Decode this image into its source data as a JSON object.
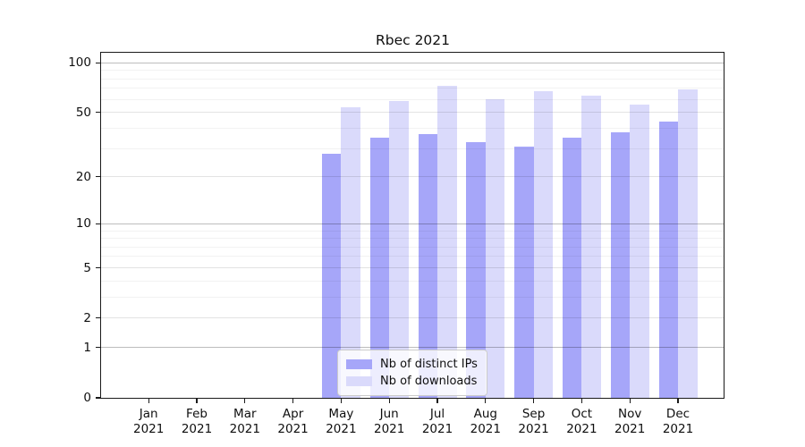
{
  "figure_title": "Rbec 2021",
  "chart_data": {
    "type": "bar",
    "title": "Rbec 2021",
    "categories": [
      "Jan 2021",
      "Feb 2021",
      "Mar 2021",
      "Apr 2021",
      "May 2021",
      "Jun 2021",
      "Jul 2021",
      "Aug 2021",
      "Sep 2021",
      "Oct 2021",
      "Nov 2021",
      "Dec 2021"
    ],
    "months": [
      "Jan",
      "Feb",
      "Mar",
      "Apr",
      "May",
      "Jun",
      "Jul",
      "Aug",
      "Sep",
      "Oct",
      "Nov",
      "Dec"
    ],
    "year": "2021",
    "series": [
      {
        "key": "distinct-ips",
        "name": "Nb of distinct IPs",
        "color": "#a6a6f9",
        "values": [
          0,
          0,
          0,
          0,
          28,
          35,
          37,
          33,
          31,
          35,
          38,
          44
        ]
      },
      {
        "key": "downloads",
        "name": "Nb of downloads",
        "color": "#dadafb",
        "values": [
          0,
          0,
          0,
          0,
          54,
          59,
          73,
          60,
          67,
          63,
          56,
          69
        ]
      }
    ],
    "y_axis": {
      "scale": "log1p",
      "tick_values": [
        0,
        1,
        2,
        5,
        10,
        20,
        50,
        100
      ],
      "major_gridlines": [
        1,
        10,
        100
      ],
      "mid_gridlines": [
        2,
        5,
        20,
        50
      ],
      "minor_gridlines": [
        3,
        4,
        6,
        7,
        8,
        9,
        30,
        40,
        60,
        70,
        80,
        90
      ],
      "range_max": 115
    },
    "xlabel": "",
    "ylabel": "",
    "grid": true,
    "legend_position": "lower center"
  },
  "colors": {
    "bar_distinct_ips": "#a6a6f9",
    "bar_downloads": "#dadafb",
    "spine": "#1a1a1a",
    "grid_major": "rgba(0,0,0,0.26)",
    "grid_mid": "rgba(0,0,0,0.11)",
    "grid_minor": "rgba(0,0,0,0.05)",
    "background": "#ffffff"
  }
}
